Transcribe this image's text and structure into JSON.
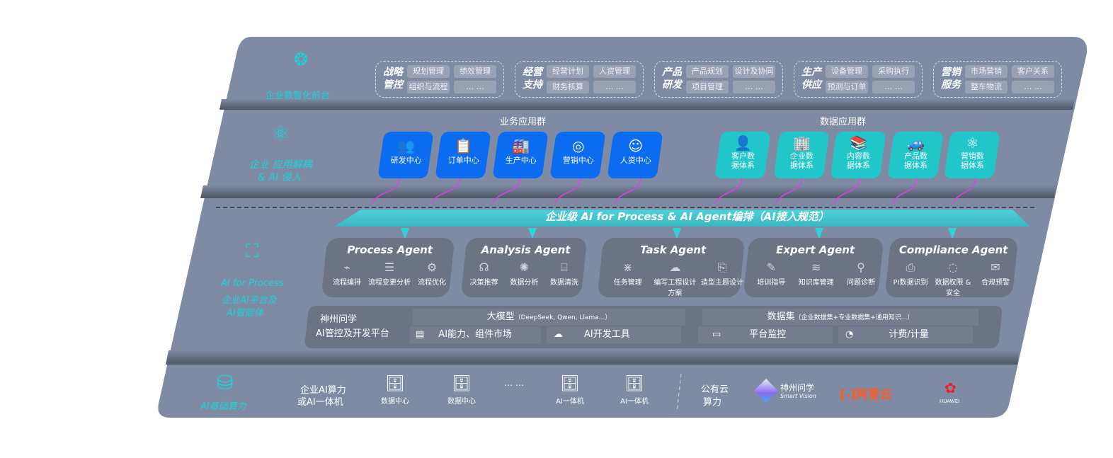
{
  "front": {
    "label": "企业数智化前台",
    "icon": "brain-icon",
    "groups": [
      {
        "title": "战略管控",
        "items": [
          "规划管理",
          "绩效管理",
          "组织与流程",
          "… …"
        ]
      },
      {
        "title": "经营支持",
        "items": [
          "经营计划",
          "人资管理",
          "财务核算",
          "… …"
        ]
      },
      {
        "title": "产品研发",
        "items": [
          "产品规划",
          "设计及协同",
          "项目管理",
          "… …"
        ]
      },
      {
        "title": "生产供应",
        "items": [
          "设备管理",
          "采购执行",
          "预测与订单",
          "… …"
        ]
      },
      {
        "title": "营销服务",
        "items": [
          "市场营销",
          "客户关系",
          "整车物流",
          "… …"
        ]
      }
    ]
  },
  "apps": {
    "label_line1": "企业 应用解耦",
    "label_line2": "& AI 侵入",
    "icon": "molecule-icon",
    "business_title": "业务应用群",
    "data_title": "数据应用群",
    "business": [
      {
        "label": "研发中心",
        "icon": "team-icon"
      },
      {
        "label": "订单中心",
        "icon": "clipboard-icon"
      },
      {
        "label": "生产中心",
        "icon": "factory-icon"
      },
      {
        "label": "营销中心",
        "icon": "target-icon"
      },
      {
        "label": "人资中心",
        "icon": "person-growth-icon"
      }
    ],
    "data": [
      {
        "label": "客户数据体系",
        "icon": "user-icon"
      },
      {
        "label": "企业数据体系",
        "icon": "building-icon"
      },
      {
        "label": "内容数据体系",
        "icon": "books-icon"
      },
      {
        "label": "产品数据体系",
        "icon": "car-icon"
      },
      {
        "label": "营销数据体系",
        "icon": "atom-icon"
      }
    ]
  },
  "orchestration": {
    "title": "企业级 AI for Process & AI Agent编排（AI接入规范）",
    "accent": "#3fc6cf"
  },
  "ai": {
    "label_line1": "AI for Process",
    "label_line2": "企业AI平台及",
    "label_line3": "AI智能体",
    "icon": "face-scan-icon",
    "agents": [
      {
        "name": "Process Agent",
        "features": [
          "流程编排",
          "流程变更分析",
          "流程优化"
        ]
      },
      {
        "name": "Analysis Agent",
        "features": [
          "决策推荐",
          "数据分析",
          "数据清洗"
        ]
      },
      {
        "name": "Task Agent",
        "features": [
          "任务管理",
          "编写工程设计方案",
          "造型主题设计"
        ]
      },
      {
        "name": "Expert Agent",
        "features": [
          "培训指导",
          "知识库管理",
          "问题诊断"
        ]
      },
      {
        "name": "Compliance Agent",
        "features": [
          "PI数据识别",
          "数据权限 & 安全",
          "合规预警"
        ]
      }
    ],
    "platform": {
      "title_line1": "神州问学",
      "title_line2": "AI管控及开发平台",
      "model": "大模型",
      "model_note": "（DeepSeek, Qwen, Llama...）",
      "dataset": "数据集",
      "dataset_note": "（企业数据集+专业数据集+通用知识...）",
      "tools": [
        "AI能力、组件市场",
        "AI开发工具",
        "平台监控",
        "计费/计量"
      ]
    }
  },
  "compute": {
    "label": "AI基础算力",
    "icon": "database-icon",
    "private_line1": "企业AI算力",
    "private_line2": "或AI一体机",
    "servers": [
      "数据中心",
      "数据中心",
      "AI一体机",
      "AI一体机"
    ],
    "ellipsis": "… …",
    "public_line1": "公有云",
    "public_line2": "算力",
    "vendors": {
      "smartvision": "神州问学",
      "smartvision_sub": "Smart Vision",
      "aliyun": "阿里云",
      "aliyun_color": "#ff5a1f",
      "huawei": "HUAWEI",
      "huawei_color": "#e8202a"
    }
  }
}
